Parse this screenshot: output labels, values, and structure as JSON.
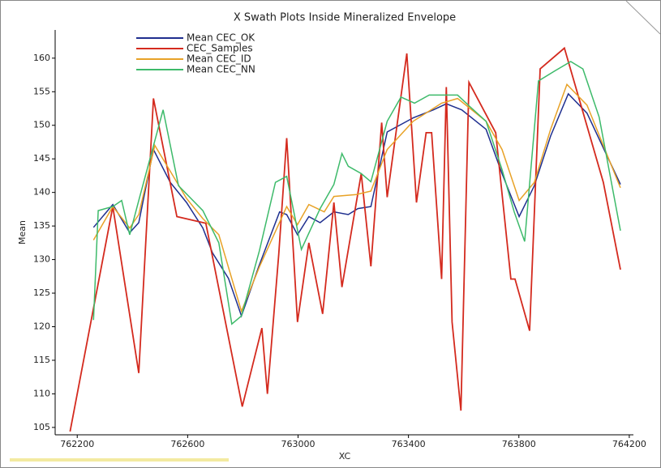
{
  "chart_data": {
    "type": "line",
    "title": "X Swath Plots Inside Mineralized Envelope",
    "x_label": "XC",
    "y_label": "Mean",
    "xlim": [
      762120,
      764215
    ],
    "ylim": [
      103.9,
      164.2
    ],
    "xticks": [
      762200,
      762600,
      763000,
      763400,
      763800,
      764200
    ],
    "yticks": [
      105,
      110,
      115,
      120,
      125,
      130,
      135,
      140,
      145,
      150,
      155,
      160
    ],
    "legend": "top-left",
    "series": [
      {
        "name": "Mean CEC_OK",
        "color": "#1f2f8f",
        "x": [
          762259,
          762329,
          762390,
          762423,
          762476,
          762537,
          762596,
          762655,
          762690,
          762748,
          762795,
          762857,
          762933,
          762959,
          762998,
          763039,
          763080,
          763130,
          763182,
          763217,
          763264,
          763323,
          763417,
          763490,
          763537,
          763593,
          763681,
          763739,
          763801,
          763856,
          763915,
          763979,
          764047,
          764168
        ],
        "values": [
          134.8,
          138.2,
          134.0,
          135.5,
          146.4,
          141.5,
          138.5,
          134.7,
          131.0,
          127.2,
          121.6,
          128.9,
          137.1,
          136.7,
          133.7,
          136.4,
          135.5,
          137.1,
          136.7,
          137.6,
          137.9,
          149.0,
          151.1,
          152.3,
          153.2,
          152.3,
          149.4,
          142.8,
          136.4,
          141.0,
          148.4,
          154.7,
          151.8,
          141.2
        ]
      },
      {
        "name": "CEC_Samples",
        "color": "#d42a1e",
        "x": [
          762174,
          762329,
          762423,
          762476,
          762561,
          762666,
          762798,
          762869,
          762889,
          762930,
          762959,
          762998,
          763039,
          763089,
          763130,
          763159,
          763229,
          763264,
          763303,
          763323,
          763394,
          763429,
          763464,
          763484,
          763520,
          763537,
          763558,
          763590,
          763619,
          763716,
          763771,
          763786,
          763839,
          763877,
          763965,
          764106,
          764168
        ],
        "values": [
          104.4,
          137.9,
          113.1,
          154.0,
          136.4,
          135.4,
          108.1,
          119.8,
          110.0,
          130.8,
          148.1,
          120.7,
          132.5,
          121.9,
          138.5,
          125.9,
          142.8,
          129.0,
          150.4,
          139.3,
          160.7,
          138.5,
          148.9,
          148.9,
          127.1,
          155.7,
          120.7,
          107.5,
          156.4,
          148.9,
          127.1,
          127.1,
          119.4,
          158.4,
          161.5,
          141.5,
          128.5
        ]
      },
      {
        "name": "Mean CEC_ID",
        "color": "#e8a227",
        "x": [
          762259,
          762329,
          762390,
          762423,
          762481,
          762596,
          762655,
          762713,
          762795,
          762860,
          762959,
          762998,
          763039,
          763095,
          763130,
          763212,
          763264,
          763323,
          763417,
          763520,
          763578,
          763681,
          763739,
          763801,
          763856,
          763915,
          763974,
          764047,
          764168
        ],
        "values": [
          132.9,
          137.9,
          134.7,
          136.7,
          147.0,
          139.1,
          136.1,
          133.7,
          122.3,
          128.9,
          137.9,
          135.2,
          138.2,
          137.1,
          139.4,
          139.7,
          140.2,
          146.4,
          150.6,
          153.3,
          154.0,
          150.6,
          146.4,
          138.8,
          141.5,
          149.4,
          156.1,
          153.0,
          140.7
        ]
      },
      {
        "name": "Mean CEC_NN",
        "color": "#3dba6a",
        "x": [
          762259,
          762276,
          762329,
          762361,
          762390,
          762423,
          762511,
          762567,
          762655,
          762713,
          762760,
          762795,
          762860,
          762918,
          762959,
          763012,
          763080,
          763130,
          763159,
          763182,
          763229,
          763264,
          763323,
          763373,
          763422,
          763475,
          763520,
          763578,
          763622,
          763681,
          763739,
          763783,
          763821,
          763871,
          763930,
          763988,
          764032,
          764091,
          764168
        ],
        "values": [
          121.0,
          137.3,
          137.9,
          138.8,
          133.7,
          138.8,
          152.3,
          141.0,
          137.3,
          132.5,
          120.4,
          121.6,
          131.3,
          141.5,
          142.4,
          131.5,
          137.6,
          141.2,
          145.8,
          143.9,
          142.8,
          141.6,
          150.6,
          154.2,
          153.3,
          154.5,
          154.5,
          154.5,
          152.8,
          150.6,
          143.4,
          137.1,
          132.7,
          156.6,
          158.1,
          159.5,
          158.4,
          151.2,
          134.3
        ]
      }
    ]
  }
}
